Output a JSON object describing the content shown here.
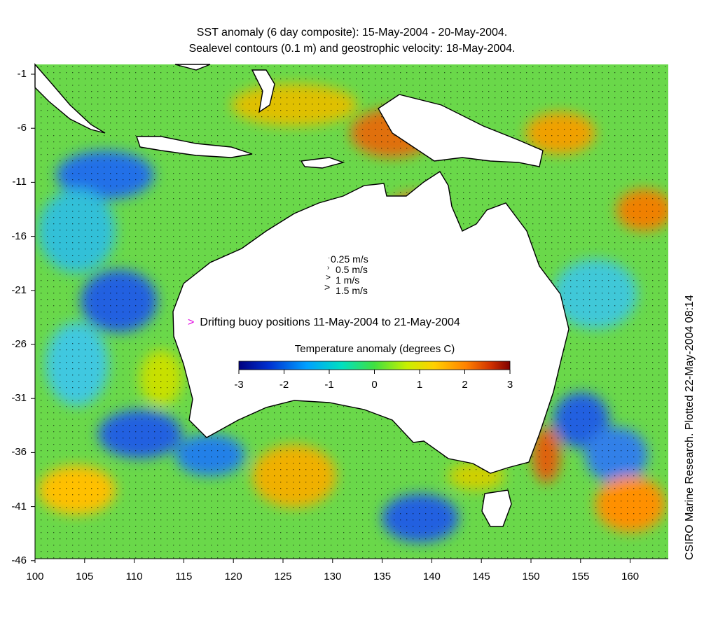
{
  "titles": {
    "line1": "SST anomaly (6 day composite): 15-May-2004 - 20-May-2004.",
    "line2": "Sealevel contours (0.1 m) and geostrophic velocity: 18-May-2004."
  },
  "credit": "CSIRO Marine Research. Plotted 22-May-2004 08:14",
  "axes": {
    "x_ticks": [
      "100",
      "105",
      "110",
      "115",
      "120",
      "125",
      "130",
      "135",
      "140",
      "145",
      "150",
      "155",
      "160"
    ],
    "y_ticks": [
      "-1",
      "-6",
      "-11",
      "-16",
      "-21",
      "-26",
      "-31",
      "-36",
      "-41",
      "-46"
    ],
    "x_range": [
      100,
      164
    ],
    "y_range": [
      -46,
      0.5
    ]
  },
  "velocity_legend": [
    "0.25 m/s",
    "0.5 m/s",
    "1 m/s",
    "1.5 m/s"
  ],
  "buoy_label": "Drifting buoy positions 11-May-2004 to 21-May-2004",
  "colorbar": {
    "title": "Temperature anomaly (degrees C)",
    "ticks": [
      "-3",
      "-2",
      "-1",
      "0",
      "1",
      "2",
      "3"
    ],
    "range": [
      -3,
      3
    ],
    "colors": [
      "#00007f",
      "#0030d0",
      "#00a0ff",
      "#00e0c0",
      "#40e040",
      "#c8f000",
      "#ffd000",
      "#ff8000",
      "#d03000",
      "#800000"
    ]
  },
  "colors": {
    "land": "#ffffff",
    "coast": "#000000",
    "contour": "#d8e8e8",
    "buoy": "#e000e0"
  }
}
